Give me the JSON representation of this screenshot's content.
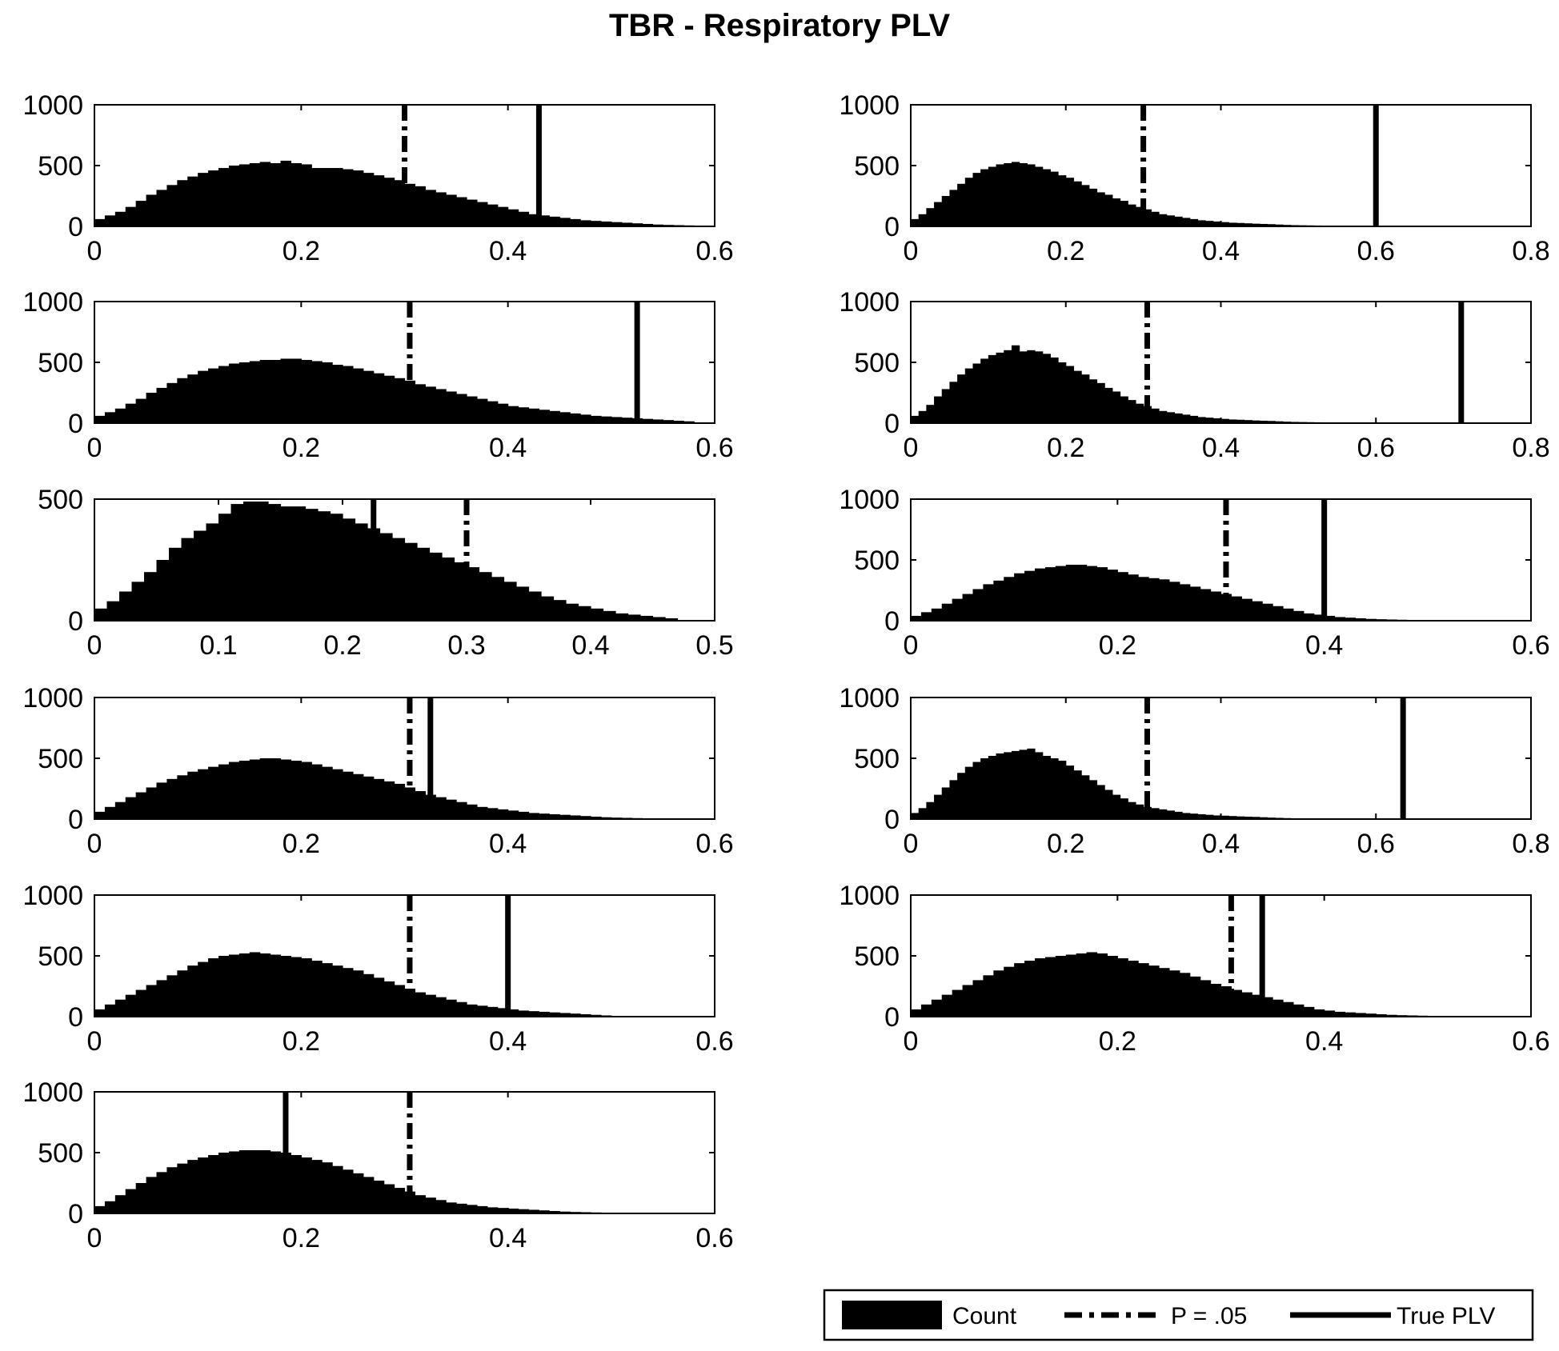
{
  "title": "TBR - Respiratory PLV",
  "legend": {
    "count_label": "Count",
    "threshold_label": "P = .05",
    "true_label": "True PLV"
  },
  "colors": {
    "bars": "#000000",
    "axes": "#000000",
    "background": "#ffffff"
  },
  "chart_data": [
    {
      "type": "bar",
      "panel": "row1-left",
      "xlim": [
        0,
        0.6
      ],
      "ylim": [
        0,
        1000
      ],
      "xticks": [
        "0",
        "0.2",
        "0.4",
        "0.6"
      ],
      "yticks": [
        "0",
        "500",
        "1000"
      ],
      "threshold": 0.3,
      "true_plv": 0.43,
      "series": [
        {
          "name": "Count",
          "bin_start": 0,
          "bin_width": 0.01,
          "values": [
            60,
            90,
            120,
            160,
            210,
            260,
            300,
            340,
            380,
            410,
            440,
            460,
            480,
            500,
            510,
            520,
            530,
            520,
            540,
            520,
            510,
            480,
            480,
            480,
            470,
            460,
            440,
            420,
            400,
            380,
            350,
            330,
            300,
            280,
            260,
            240,
            220,
            200,
            180,
            160,
            140,
            120,
            100,
            90,
            80,
            70,
            60,
            50,
            45,
            40,
            35,
            30,
            25,
            20,
            15,
            12,
            10,
            8,
            6,
            5
          ]
        }
      ]
    },
    {
      "type": "bar",
      "panel": "row1-right",
      "xlim": [
        0,
        0.8
      ],
      "ylim": [
        0,
        1000
      ],
      "xticks": [
        "0",
        "0.2",
        "0.4",
        "0.6",
        "0.8"
      ],
      "yticks": [
        "0",
        "500",
        "1000"
      ],
      "threshold": 0.3,
      "true_plv": 0.6,
      "series": [
        {
          "name": "Count",
          "bin_start": 0,
          "bin_width": 0.01,
          "values": [
            60,
            100,
            150,
            200,
            250,
            300,
            350,
            400,
            440,
            470,
            490,
            510,
            520,
            530,
            520,
            510,
            490,
            470,
            450,
            420,
            400,
            370,
            340,
            310,
            280,
            260,
            230,
            210,
            180,
            160,
            140,
            120,
            100,
            90,
            80,
            70,
            60,
            50,
            45,
            40,
            35,
            30,
            28,
            25,
            22,
            20,
            18,
            15,
            12,
            10,
            9,
            8,
            7,
            6,
            5,
            4,
            4,
            3,
            3,
            2
          ]
        }
      ]
    },
    {
      "type": "bar",
      "panel": "row2-left",
      "xlim": [
        0,
        0.6
      ],
      "ylim": [
        0,
        1000
      ],
      "xticks": [
        "0",
        "0.2",
        "0.4",
        "0.6"
      ],
      "yticks": [
        "0",
        "500",
        "1000"
      ],
      "threshold": 0.305,
      "true_plv": 0.525,
      "series": [
        {
          "name": "Count",
          "bin_start": 0,
          "bin_width": 0.01,
          "values": [
            60,
            90,
            120,
            160,
            200,
            250,
            290,
            330,
            370,
            400,
            430,
            450,
            470,
            490,
            500,
            510,
            520,
            520,
            530,
            530,
            520,
            510,
            500,
            480,
            470,
            450,
            430,
            410,
            390,
            370,
            350,
            320,
            300,
            280,
            260,
            240,
            220,
            200,
            180,
            160,
            140,
            130,
            120,
            110,
            100,
            90,
            80,
            70,
            60,
            55,
            50,
            45,
            40,
            35,
            30,
            25,
            20,
            15
          ]
        }
      ]
    },
    {
      "type": "bar",
      "panel": "row2-right",
      "xlim": [
        0,
        0.8
      ],
      "ylim": [
        0,
        1000
      ],
      "xticks": [
        "0",
        "0.2",
        "0.4",
        "0.6",
        "0.8"
      ],
      "yticks": [
        "0",
        "500",
        "1000"
      ],
      "threshold": 0.305,
      "true_plv": 0.71,
      "series": [
        {
          "name": "Count",
          "bin_start": 0,
          "bin_width": 0.01,
          "values": [
            60,
            100,
            150,
            220,
            280,
            340,
            400,
            450,
            490,
            530,
            560,
            580,
            600,
            640,
            590,
            600,
            590,
            570,
            540,
            500,
            470,
            430,
            400,
            360,
            330,
            290,
            260,
            220,
            190,
            160,
            140,
            120,
            100,
            90,
            80,
            70,
            60,
            50,
            45,
            40,
            35,
            30,
            28,
            25,
            22,
            20,
            18,
            15,
            12,
            10,
            9,
            8,
            7,
            6,
            5,
            4,
            4,
            3,
            3,
            2,
            2,
            2
          ]
        }
      ]
    },
    {
      "type": "bar",
      "panel": "row3-left",
      "xlim": [
        0,
        0.5
      ],
      "ylim": [
        0,
        500
      ],
      "xticks": [
        "0",
        "0.1",
        "0.2",
        "0.3",
        "0.4",
        "0.5"
      ],
      "yticks": [
        "0",
        "500"
      ],
      "threshold": 0.3,
      "true_plv": 0.225,
      "series": [
        {
          "name": "Count",
          "bin_start": 0,
          "bin_width": 0.01,
          "values": [
            50,
            80,
            120,
            160,
            200,
            250,
            300,
            340,
            370,
            400,
            440,
            480,
            490,
            490,
            480,
            470,
            470,
            460,
            450,
            440,
            420,
            400,
            380,
            360,
            340,
            320,
            300,
            280,
            260,
            240,
            220,
            200,
            180,
            160,
            140,
            120,
            100,
            85,
            70,
            60,
            50,
            40,
            30,
            25,
            20,
            15,
            10
          ]
        }
      ]
    },
    {
      "type": "bar",
      "panel": "row3-right",
      "xlim": [
        0,
        0.6
      ],
      "ylim": [
        0,
        1000
      ],
      "xticks": [
        "0",
        "0.2",
        "0.4",
        "0.6"
      ],
      "yticks": [
        "0",
        "500",
        "1000"
      ],
      "threshold": 0.305,
      "true_plv": 0.4,
      "series": [
        {
          "name": "Count",
          "bin_start": 0,
          "bin_width": 0.01,
          "values": [
            40,
            70,
            100,
            140,
            180,
            220,
            260,
            300,
            330,
            360,
            390,
            410,
            430,
            440,
            450,
            460,
            460,
            450,
            440,
            420,
            400,
            380,
            360,
            350,
            340,
            320,
            300,
            280,
            260,
            240,
            220,
            200,
            180,
            160,
            140,
            120,
            100,
            80,
            60,
            50,
            40,
            30,
            25,
            20,
            15,
            12,
            10,
            8,
            6,
            5
          ]
        }
      ]
    },
    {
      "type": "bar",
      "panel": "row4-left",
      "xlim": [
        0,
        0.6
      ],
      "ylim": [
        0,
        1000
      ],
      "xticks": [
        "0",
        "0.2",
        "0.4",
        "0.6"
      ],
      "yticks": [
        "0",
        "500",
        "1000"
      ],
      "threshold": 0.305,
      "true_plv": 0.325,
      "series": [
        {
          "name": "Count",
          "bin_start": 0,
          "bin_width": 0.01,
          "values": [
            60,
            100,
            140,
            180,
            220,
            260,
            300,
            330,
            360,
            390,
            410,
            430,
            450,
            470,
            480,
            490,
            500,
            500,
            490,
            480,
            470,
            450,
            430,
            410,
            390,
            370,
            350,
            330,
            310,
            290,
            260,
            230,
            200,
            180,
            160,
            140,
            120,
            100,
            90,
            80,
            70,
            60,
            50,
            45,
            40,
            35,
            30,
            25,
            20,
            15,
            12,
            10,
            8,
            6
          ]
        }
      ]
    },
    {
      "type": "bar",
      "panel": "row4-right",
      "xlim": [
        0,
        0.8
      ],
      "ylim": [
        0,
        1000
      ],
      "xticks": [
        "0",
        "0.2",
        "0.4",
        "0.6",
        "0.8"
      ],
      "yticks": [
        "0",
        "500",
        "1000"
      ],
      "threshold": 0.305,
      "true_plv": 0.635,
      "series": [
        {
          "name": "Count",
          "bin_start": 0,
          "bin_width": 0.01,
          "values": [
            50,
            90,
            140,
            200,
            260,
            320,
            380,
            430,
            470,
            500,
            520,
            540,
            550,
            560,
            570,
            580,
            550,
            520,
            500,
            480,
            440,
            400,
            360,
            320,
            280,
            240,
            200,
            170,
            140,
            120,
            100,
            90,
            80,
            70,
            60,
            50,
            45,
            40,
            35,
            30,
            28,
            25,
            22,
            20,
            18,
            15,
            12,
            10,
            8,
            6,
            5,
            4,
            3
          ]
        }
      ]
    },
    {
      "type": "bar",
      "panel": "row5-left",
      "xlim": [
        0,
        0.6
      ],
      "ylim": [
        0,
        1000
      ],
      "xticks": [
        "0",
        "0.2",
        "0.4",
        "0.6"
      ],
      "yticks": [
        "0",
        "500",
        "1000"
      ],
      "threshold": 0.305,
      "true_plv": 0.4,
      "series": [
        {
          "name": "Count",
          "bin_start": 0,
          "bin_width": 0.01,
          "values": [
            60,
            100,
            140,
            180,
            220,
            260,
            300,
            340,
            380,
            420,
            450,
            480,
            500,
            510,
            520,
            530,
            520,
            510,
            500,
            490,
            480,
            460,
            440,
            420,
            400,
            380,
            350,
            320,
            290,
            260,
            230,
            200,
            180,
            160,
            140,
            120,
            100,
            90,
            80,
            70,
            60,
            50,
            45,
            40,
            35,
            30,
            25,
            20,
            15,
            10
          ]
        }
      ]
    },
    {
      "type": "bar",
      "panel": "row5-right",
      "xlim": [
        0,
        0.6
      ],
      "ylim": [
        0,
        1000
      ],
      "xticks": [
        "0",
        "0.2",
        "0.4",
        "0.6"
      ],
      "yticks": [
        "0",
        "500",
        "1000"
      ],
      "threshold": 0.31,
      "true_plv": 0.34,
      "series": [
        {
          "name": "Count",
          "bin_start": 0,
          "bin_width": 0.01,
          "values": [
            60,
            100,
            140,
            180,
            220,
            260,
            300,
            340,
            380,
            410,
            440,
            460,
            480,
            490,
            500,
            510,
            520,
            530,
            520,
            500,
            480,
            460,
            440,
            420,
            400,
            380,
            360,
            330,
            300,
            270,
            250,
            220,
            200,
            180,
            160,
            140,
            120,
            100,
            80,
            60,
            50,
            40,
            35,
            30,
            25,
            20,
            15,
            12,
            10,
            8,
            6,
            5
          ]
        }
      ]
    },
    {
      "type": "bar",
      "panel": "row6-left",
      "xlim": [
        0,
        0.6
      ],
      "ylim": [
        0,
        1000
      ],
      "xticks": [
        "0",
        "0.2",
        "0.4",
        "0.6"
      ],
      "yticks": [
        "0",
        "500",
        "1000"
      ],
      "threshold": 0.305,
      "true_plv": 0.185,
      "series": [
        {
          "name": "Count",
          "bin_start": 0,
          "bin_width": 0.01,
          "values": [
            60,
            100,
            150,
            200,
            250,
            300,
            340,
            380,
            410,
            440,
            460,
            480,
            500,
            510,
            520,
            520,
            520,
            510,
            500,
            480,
            460,
            440,
            420,
            390,
            360,
            330,
            300,
            270,
            240,
            210,
            180,
            150,
            130,
            110,
            90,
            80,
            70,
            60,
            50,
            45,
            40,
            35,
            30,
            25,
            20,
            15,
            12,
            10,
            8,
            6
          ]
        }
      ]
    }
  ]
}
